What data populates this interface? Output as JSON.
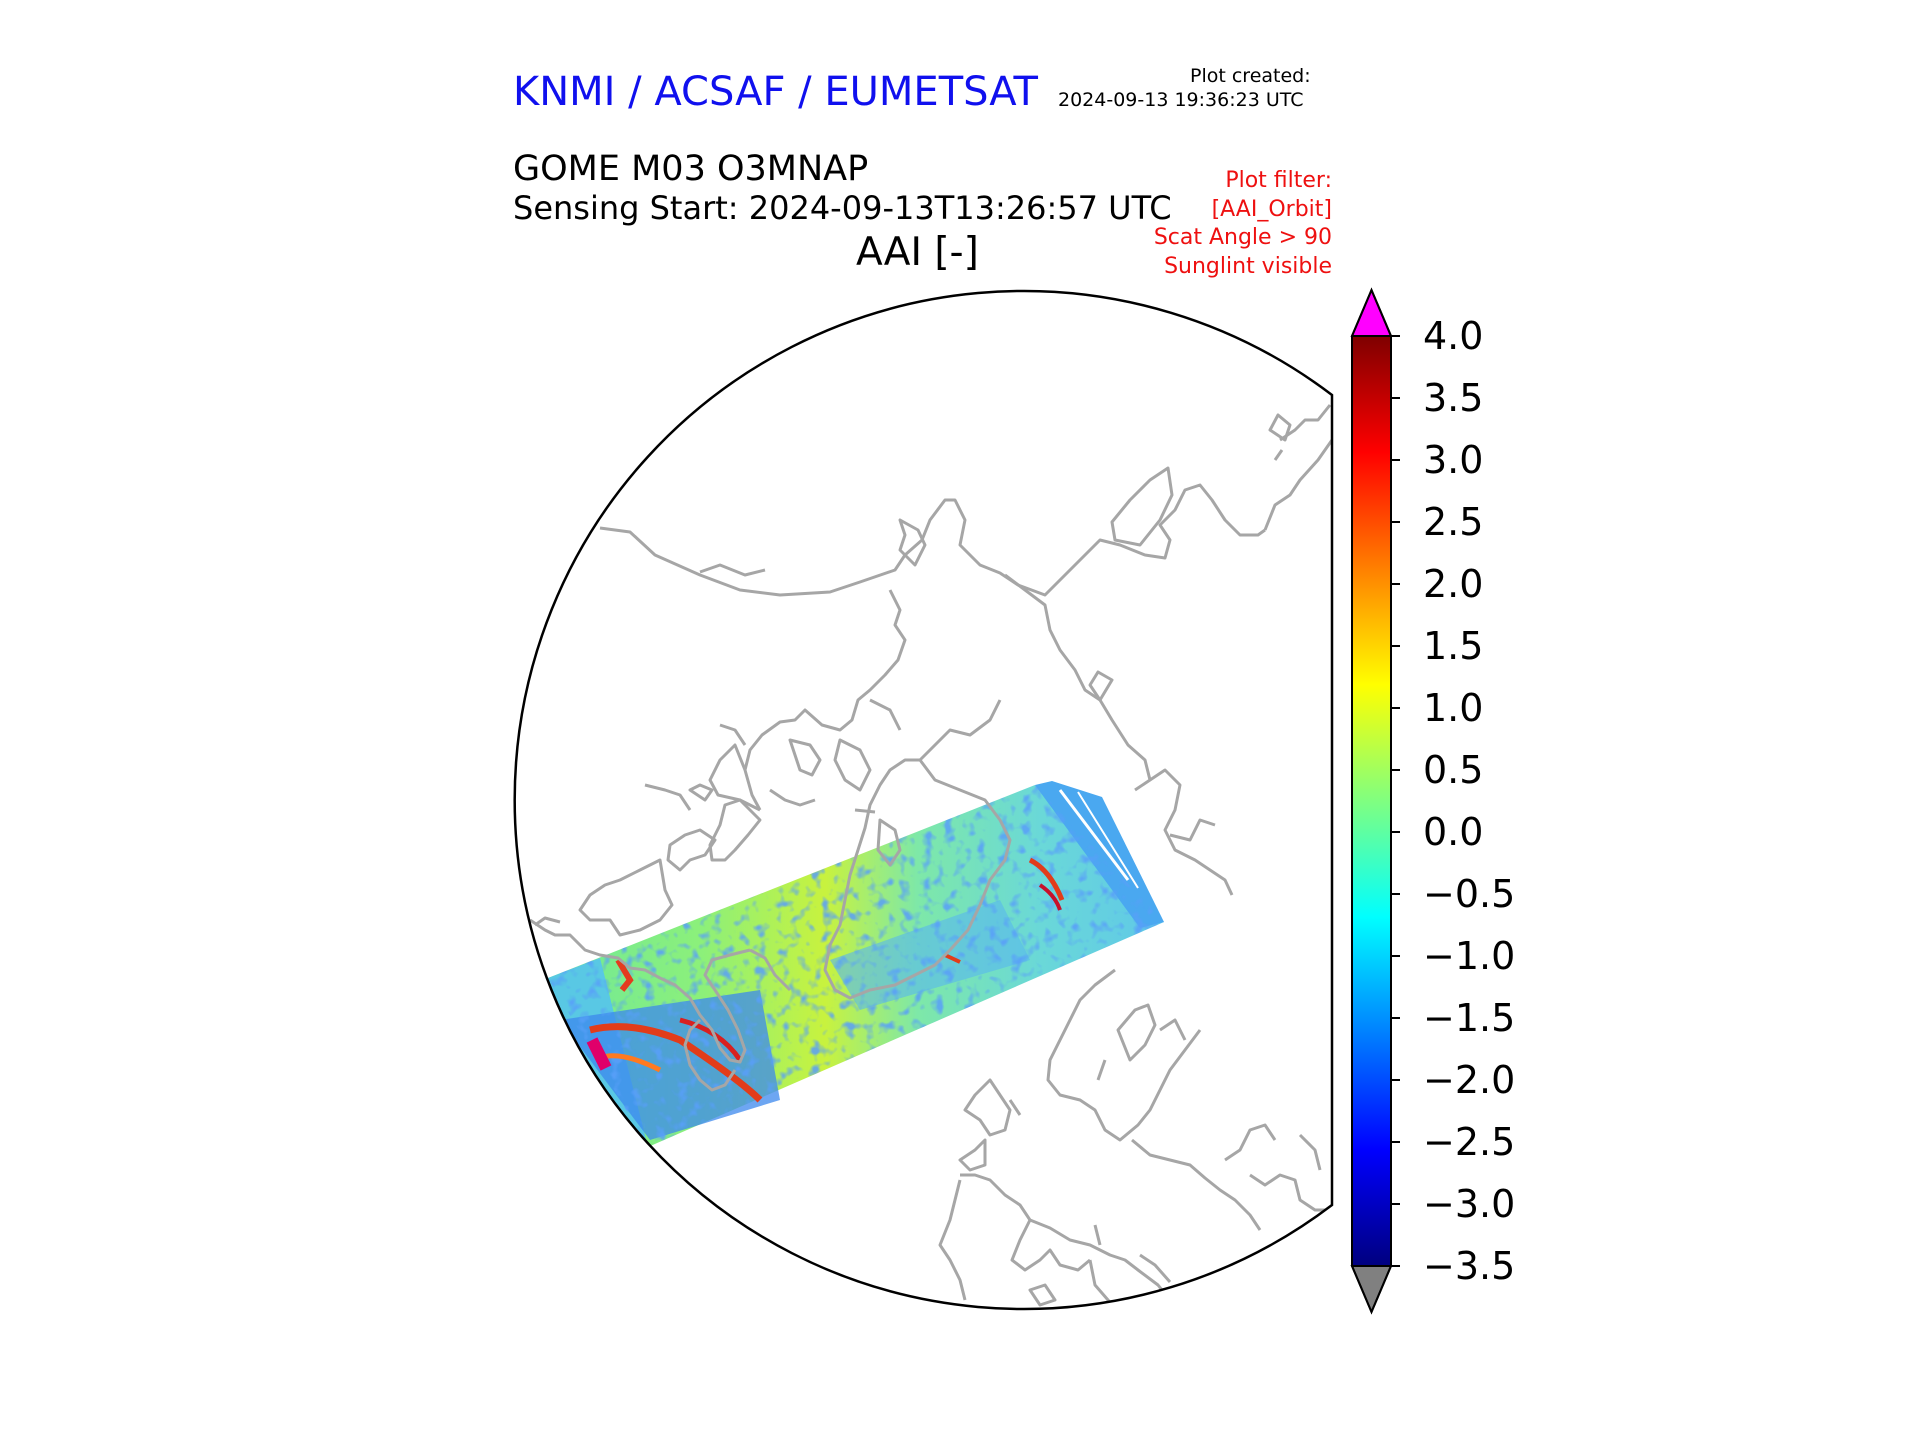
{
  "header": {
    "organization": "KNMI / ACSAF / EUMETSAT",
    "plot_created_label": "Plot created:",
    "plot_created_value": "2024-09-13 19:36:23 UTC",
    "product": "GOME M03 O3MNAP",
    "sensing_start": "Sensing Start: 2024-09-13T13:26:57 UTC",
    "variable": "AAI [-]"
  },
  "filter": {
    "title": "Plot filter:",
    "items": [
      "[AAI_Orbit]",
      "Scat Angle > 90",
      "Sunglint visible"
    ]
  },
  "map": {
    "projection": "north-polar stereographic",
    "coastline_color": "#a6a6a6",
    "swath": "single GOME-2 orbit swath from Aleutians/North America across Greenland toward Norway"
  },
  "colorbar": {
    "colormap": "jet",
    "min": -3.5,
    "max": 4.0,
    "extend": "both",
    "over_color": "#ff00ff",
    "under_color": "#808080",
    "ticks": [
      "4.0",
      "3.5",
      "3.0",
      "2.5",
      "2.0",
      "1.5",
      "1.0",
      "0.5",
      "0.0",
      "−0.5",
      "−1.0",
      "−1.5",
      "−2.0",
      "−2.5",
      "−3.0",
      "−3.5"
    ]
  }
}
